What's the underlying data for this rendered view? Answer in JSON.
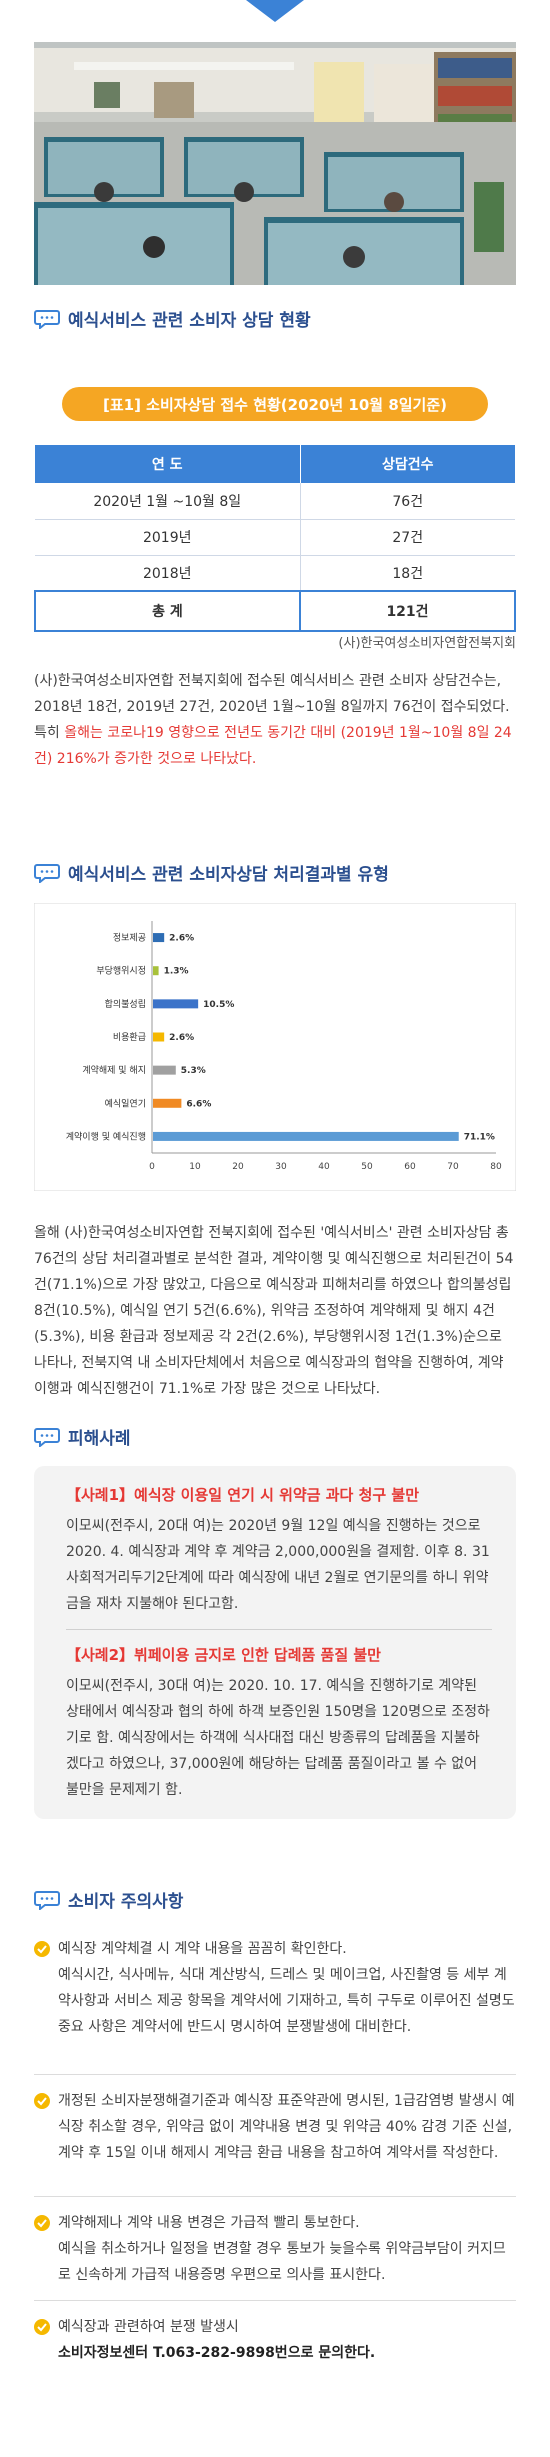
{
  "section1": {
    "title": "예식서비스 관련 소비자 상담 현황"
  },
  "table1": {
    "caption": "[표1] 소비자상담 접수 현황(2020년 10월 8일기준)",
    "headers": [
      "연 도",
      "상담건수"
    ],
    "rows": [
      {
        "year": "2020년 1월 ~10월 8일",
        "count": "76건"
      },
      {
        "year": "2019년",
        "count": "27건"
      },
      {
        "year": "2018년",
        "count": "18건"
      }
    ],
    "total_label": "총 계",
    "total_value": "121건",
    "source": "(사)한국여성소비자연합전북지회"
  },
  "para1": {
    "normal": "(사)한국여성소비자연합 전북지회에 접수된 예식서비스 관련 소비자 상담건수는, 2018년 18건, 2019년 27건, 2020년 1월~10월 8일까지 76건이 접수되었다. 특히 ",
    "highlight": "올해는 코로나19 영향으로 전년도 동기간 대비 (2019년 1월~10월 8일 24건) 216%가 증가한 것으로 나타났다."
  },
  "section2": {
    "title": "예식서비스 관련 소비자상담 처리결과별 유형"
  },
  "chart_data": {
    "type": "bar",
    "orientation": "horizontal",
    "categories": [
      "정보제공",
      "부당행위시정",
      "합의불성립",
      "비용환급",
      "계약해제 및 해지",
      "예식일연기",
      "계약이행 및 예식진행"
    ],
    "values": [
      2.6,
      1.3,
      10.5,
      2.6,
      5.3,
      6.6,
      71.1
    ],
    "value_labels": [
      "2.6%",
      "1.3%",
      "10.5%",
      "2.6%",
      "5.3%",
      "6.6%",
      "71.1%"
    ],
    "colors": [
      "#2e6db4",
      "#a8c13a",
      "#3b73c9",
      "#f5b800",
      "#a0a0a0",
      "#f08a24",
      "#5b9bd5"
    ],
    "xlim": [
      0,
      80
    ],
    "xticks": [
      "0",
      "10",
      "20",
      "30",
      "40",
      "50",
      "60",
      "70",
      "80"
    ],
    "grid": false
  },
  "para2": {
    "text": "올해 (사)한국여성소비자연합 전북지회에 접수된 '예식서비스' 관련 소비자상담 총 76건의 상담 처리결과별로 분석한 결과, 계약이행 및 예식진행으로 처리된건이 54건(71.1%)으로 가장 많았고, 다음으로 예식장과 피해처리를 하였으나 합의불성립 8건(10.5%), 예식일 연기 5건(6.6%), 위약금 조정하여 계약해제 및 해지 4건(5.3%), 비용 환급과 정보제공 각 2건(2.6%), 부당행위시정 1건(1.3%)순으로 나타나, 전북지역 내 소비자단체에서 처음으로 예식장과의 협약을 진행하여, 계약이행과 예식진행건이 71.1%로 가장 많은 것으로 나타났다."
  },
  "section3": {
    "title": "피해사례"
  },
  "cases": [
    {
      "title": "【사례1】예식장 이용일 연기 시 위약금 과다 청구 불만",
      "text": "이모씨(전주시, 20대 여)는 2020년 9월 12일 예식을 진행하는 것으로 2020. 4. 예식장과 계약 후 계약금 2,000,000원을 결제함. 이후 8. 31 사회적거리두기2단계에 따라 예식장에 내년 2월로 연기문의를 하니 위약금을 재차 지불해야 된다고함."
    },
    {
      "title": "【사례2】뷔페이용 금지로 인한 답례품 품질 불만",
      "text": "이모씨(전주시, 30대 여)는 2020. 10. 17. 예식을 진행하기로 계약된 상태에서 예식장과 협의 하에 하객 보증인원 150명을 120명으로 조정하기로 함. 예식장에서는 하객에 식사대접 대신 방종류의 답례품을 지불하겠다고 하였으나, 37,000원에 해당하는 답례품 품질이라고 볼 수 없어 불만을 문제제기 함."
    }
  ],
  "section4": {
    "title": "소비자 주의사항"
  },
  "cautions": [
    {
      "lead": "예식장 계약체결 시 계약 내용을 꼼꼼히 확인한다.",
      "body": "예식시간, 식사메뉴, 식대 계산방식, 드레스 및 메이크업, 사진촬영 등 세부 계약사항과 서비스 제공 항목을 계약서에 기재하고, 특히 구두로 이루어진 설명도 중요 사항은 계약서에 반드시 명시하여 분쟁발생에 대비한다."
    },
    {
      "lead": "개정된 소비자분쟁해결기준과 예식장 표준약관에 명시된, 1급감염병 발생시 예식장 취소할 경우, 위약금 없이 계약내용 변경 및 위약금 40% 감경 기준 신설, 계약 후 15일 이내 해제시 계약금 환급 내용을 참고하여 계약서를 작성한다.",
      "body": ""
    },
    {
      "lead": "계약해제나 계약 내용 변경은 가급적 빨리 통보한다.",
      "body": "예식을 취소하거나 일정을 변경할 경우 통보가 늦을수록 위약금부담이 커지므로 신속하게 가급적 내용증명 우편으로 의사를 표시한다."
    },
    {
      "lead": "예식장과 관련하여 분쟁 발생시",
      "body": "소비자정보센터 T.063-282-9898번으로 문의한다."
    }
  ]
}
